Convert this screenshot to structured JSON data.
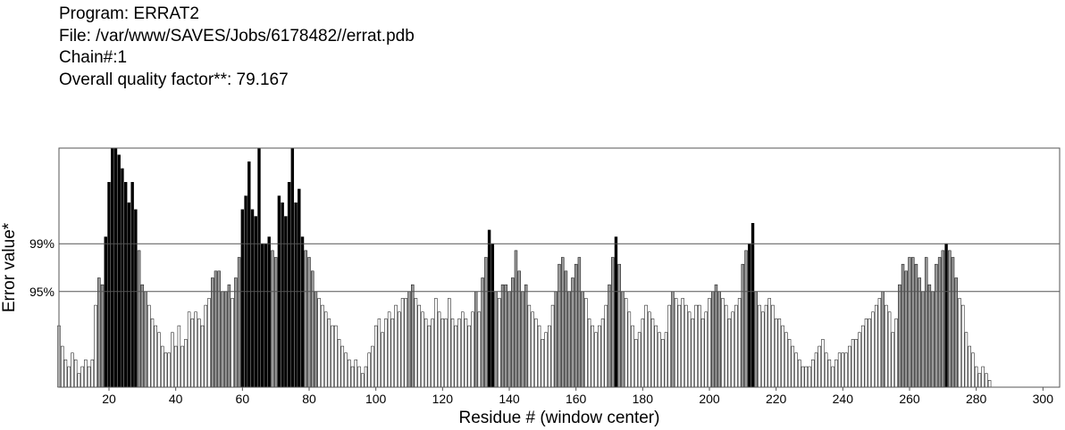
{
  "header": {
    "program": "Program: ERRAT2",
    "file": "File: /var/www/SAVES/Jobs/6178482//errat.pdb",
    "chain": "Chain#:1",
    "quality": "Overall quality factor**: 79.167"
  },
  "chart_data": {
    "type": "bar",
    "xlabel": "Residue # (window center)",
    "ylabel": "Error value*",
    "xlim": [
      5,
      305
    ],
    "xticks": [
      20,
      40,
      60,
      80,
      100,
      120,
      140,
      160,
      180,
      200,
      220,
      240,
      260,
      280,
      300
    ],
    "ylim": [
      0,
      35
    ],
    "reference_lines": [
      {
        "label": "95%",
        "value": 14.0
      },
      {
        "label": "99%",
        "value": 21.0
      }
    ],
    "color_key": {
      "below_95": "#ffffff",
      "between_95_99": "#9a9a9a",
      "above_99": "#000000"
    },
    "x_start": 5,
    "values": [
      9,
      6,
      4,
      3,
      5,
      4,
      2,
      3,
      4,
      3,
      4,
      12,
      16,
      15,
      22,
      30,
      35,
      35,
      34,
      32,
      30,
      27,
      30,
      26,
      20,
      15,
      14,
      12,
      10,
      9,
      8,
      6,
      5,
      5,
      8,
      6,
      9,
      6,
      7,
      11,
      10,
      11,
      10,
      9,
      12,
      13,
      16,
      17,
      17,
      14,
      14,
      15,
      13,
      16,
      19,
      26,
      28,
      33,
      26,
      25,
      36,
      21,
      21,
      22,
      20,
      19,
      28,
      27,
      25,
      30,
      36,
      27,
      29,
      22,
      20,
      19,
      17,
      14,
      13,
      12,
      11,
      10,
      9,
      9,
      7,
      6,
      5,
      4,
      3,
      4,
      3,
      2,
      3,
      5,
      6,
      9,
      10,
      8,
      10,
      11,
      10,
      12,
      11,
      13,
      13,
      14,
      15,
      13,
      12,
      11,
      10,
      9,
      10,
      13,
      11,
      10,
      10,
      13,
      10,
      9,
      10,
      11,
      10,
      9,
      11,
      14,
      11,
      16,
      19,
      23,
      21,
      14,
      13,
      15,
      15,
      14,
      16,
      20,
      17,
      14,
      15,
      12,
      11,
      10,
      9,
      7,
      8,
      9,
      12,
      14,
      18,
      19,
      17,
      14,
      16,
      18,
      19,
      14,
      13,
      10,
      9,
      8,
      9,
      10,
      12,
      15,
      19,
      22,
      18,
      14,
      13,
      11,
      9,
      7,
      8,
      10,
      12,
      11,
      10,
      9,
      8,
      7,
      8,
      12,
      14,
      13,
      12,
      13,
      12,
      11,
      10,
      12,
      12,
      10,
      11,
      13,
      14,
      15,
      14,
      13,
      12,
      10,
      11,
      12,
      13,
      18,
      20,
      21,
      24,
      14,
      12,
      11,
      12,
      13,
      12,
      10,
      10,
      9,
      8,
      7,
      6,
      5,
      4,
      3,
      3,
      3,
      4,
      5,
      6,
      7,
      5,
      4,
      3,
      4,
      5,
      5,
      5,
      6,
      7,
      7,
      8,
      9,
      10,
      10,
      11,
      12,
      13,
      14,
      12,
      11,
      8,
      10,
      15,
      18,
      17,
      19,
      19,
      18,
      16,
      14,
      19,
      15,
      14,
      18,
      19,
      20,
      21,
      20,
      19,
      16,
      13,
      12,
      8,
      6,
      5,
      3,
      2,
      3,
      2,
      1
    ]
  }
}
